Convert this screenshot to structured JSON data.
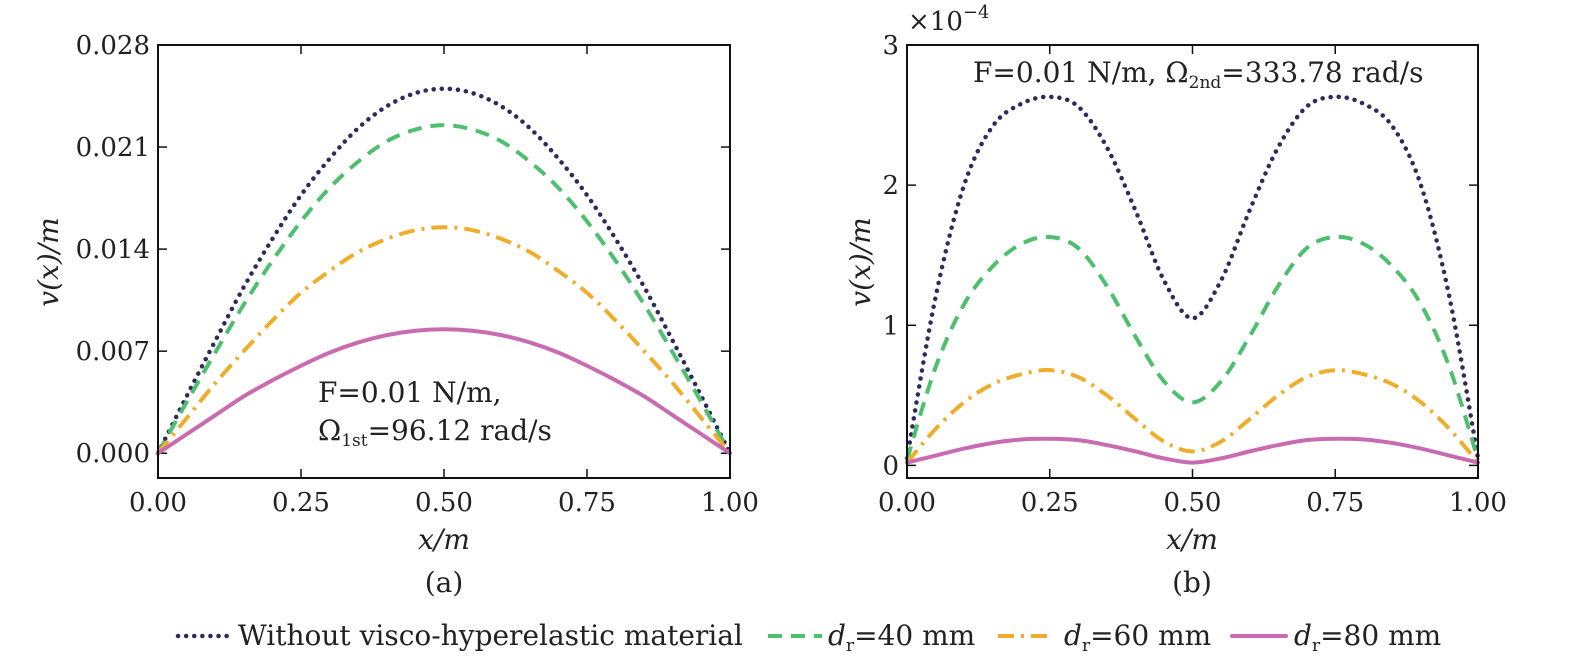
{
  "legend": {
    "entries": [
      {
        "key": "none",
        "label": "Without visco-hyperelastic material",
        "style": "dotted"
      },
      {
        "key": "d40",
        "prefix": "d",
        "sub": "r",
        "label": "=40 mm",
        "style": "dashed"
      },
      {
        "key": "d60",
        "prefix": "d",
        "sub": "r",
        "label": "=60 mm",
        "style": "dashdot"
      },
      {
        "key": "d80",
        "prefix": "d",
        "sub": "r",
        "label": "=80 mm",
        "style": "solid"
      }
    ]
  },
  "colors": {
    "none": "#2e2a5c",
    "d40": "#4dbf6e",
    "d60": "#f0ad2a",
    "d80": "#c96bb0"
  },
  "chart_data": [
    {
      "type": "line",
      "caption": "(a)",
      "xlabel": "x/m",
      "ylabel": "v(x)/m",
      "xlim": [
        0,
        1
      ],
      "ylim": [
        -0.0017,
        0.028
      ],
      "xticks": [
        0,
        0.25,
        0.5,
        0.75,
        1
      ],
      "xtick_labels": [
        "0.00",
        "0.25",
        "0.50",
        "0.75",
        "1.00"
      ],
      "yticks": [
        0,
        0.007,
        0.014,
        0.021,
        0.028
      ],
      "ytick_labels": [
        "0.000",
        "0.007",
        "0.014",
        "0.021",
        "0.028"
      ],
      "annotation": {
        "line1": "F=0.01 N/m,",
        "line2_pre": "Ω",
        "line2_sub": "1st",
        "line2_post": "=96.12 rad/s"
      },
      "x": [
        0,
        0.05,
        0.1,
        0.15,
        0.2,
        0.25,
        0.3,
        0.35,
        0.4,
        0.45,
        0.5,
        0.55,
        0.6,
        0.65,
        0.7,
        0.75,
        0.8,
        0.85,
        0.9,
        0.95,
        1
      ],
      "series": [
        {
          "key": "none",
          "values": [
            0,
            0.0039,
            0.0077,
            0.0114,
            0.0147,
            0.0177,
            0.0202,
            0.0223,
            0.0238,
            0.0247,
            0.025,
            0.0247,
            0.0238,
            0.0223,
            0.0202,
            0.0177,
            0.0147,
            0.0114,
            0.0077,
            0.0039,
            0
          ]
        },
        {
          "key": "d40",
          "values": [
            0,
            0.0035,
            0.0069,
            0.0102,
            0.0132,
            0.0159,
            0.0182,
            0.02,
            0.0214,
            0.0222,
            0.0225,
            0.0222,
            0.0214,
            0.02,
            0.0182,
            0.0159,
            0.0132,
            0.0102,
            0.0069,
            0.0035,
            0
          ]
        },
        {
          "key": "d60",
          "values": [
            0,
            0.0024,
            0.0048,
            0.007,
            0.0091,
            0.011,
            0.0125,
            0.0138,
            0.0147,
            0.0153,
            0.0155,
            0.0153,
            0.0147,
            0.0138,
            0.0125,
            0.011,
            0.0091,
            0.007,
            0.0048,
            0.0024,
            0
          ]
        },
        {
          "key": "d80",
          "values": [
            0,
            0.0013,
            0.0026,
            0.0039,
            0.005,
            0.006,
            0.0069,
            0.0076,
            0.0081,
            0.0084,
            0.0085,
            0.0084,
            0.0081,
            0.0076,
            0.0069,
            0.006,
            0.005,
            0.0039,
            0.0026,
            0.0013,
            0
          ]
        }
      ]
    },
    {
      "type": "line",
      "caption": "(b)",
      "xlabel": "x/m",
      "ylabel": "v(x)/m",
      "xlim": [
        0,
        1
      ],
      "ylim": [
        -0.09,
        3
      ],
      "multiplier_base": "×10",
      "multiplier_exp": "−4",
      "xticks": [
        0,
        0.25,
        0.5,
        0.75,
        1
      ],
      "xtick_labels": [
        "0.00",
        "0.25",
        "0.50",
        "0.75",
        "1.00"
      ],
      "yticks": [
        0,
        1,
        2,
        3
      ],
      "ytick_labels": [
        "0",
        "1",
        "2",
        "3"
      ],
      "annotation": {
        "line1": "F=0.01 N/m, ",
        "line2_pre": "Ω",
        "line2_sub": "2nd",
        "line2_post": "=333.78 rad/s"
      },
      "x": [
        0,
        0.05,
        0.1,
        0.15,
        0.2,
        0.25,
        0.3,
        0.35,
        0.4,
        0.45,
        0.5,
        0.55,
        0.6,
        0.65,
        0.7,
        0.75,
        0.8,
        0.85,
        0.9,
        0.95,
        1
      ],
      "series": [
        {
          "key": "none",
          "values": [
            0.05,
            1.2,
            2.0,
            2.42,
            2.58,
            2.63,
            2.56,
            2.27,
            1.82,
            1.32,
            1.05,
            1.32,
            1.82,
            2.27,
            2.56,
            2.63,
            2.58,
            2.42,
            2.0,
            1.2,
            0.05
          ]
        },
        {
          "key": "d40",
          "values": [
            0.04,
            0.7,
            1.15,
            1.42,
            1.58,
            1.63,
            1.55,
            1.28,
            0.92,
            0.6,
            0.45,
            0.6,
            0.92,
            1.28,
            1.55,
            1.63,
            1.58,
            1.42,
            1.15,
            0.7,
            0.04
          ]
        },
        {
          "key": "d60",
          "values": [
            0.02,
            0.26,
            0.45,
            0.58,
            0.65,
            0.68,
            0.63,
            0.5,
            0.33,
            0.17,
            0.1,
            0.17,
            0.33,
            0.5,
            0.63,
            0.68,
            0.65,
            0.58,
            0.45,
            0.26,
            0.02
          ]
        },
        {
          "key": "d80",
          "values": [
            0.02,
            0.07,
            0.12,
            0.16,
            0.185,
            0.19,
            0.18,
            0.145,
            0.1,
            0.05,
            0.02,
            0.05,
            0.1,
            0.145,
            0.18,
            0.19,
            0.185,
            0.16,
            0.12,
            0.07,
            0.02
          ]
        }
      ]
    }
  ]
}
